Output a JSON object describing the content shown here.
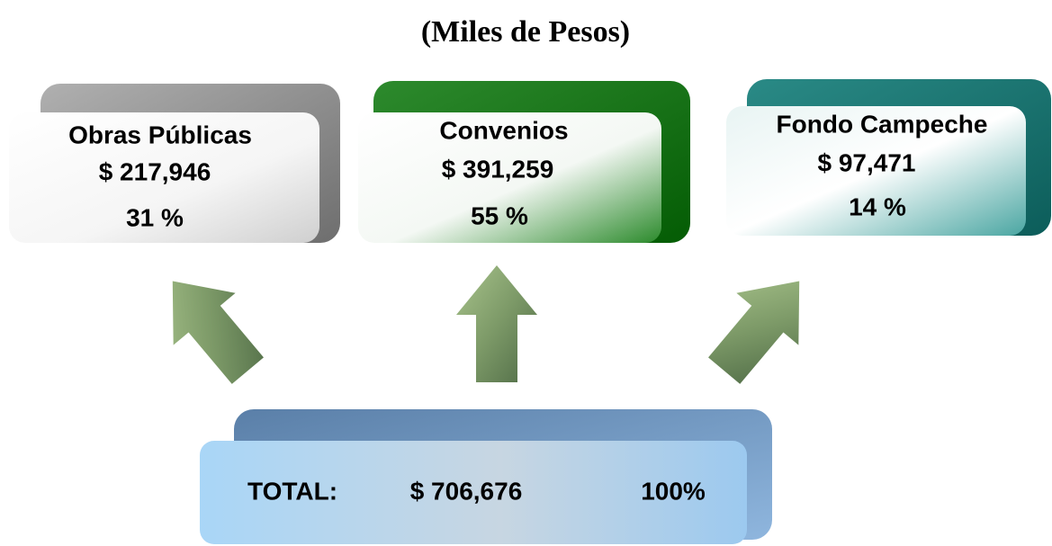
{
  "title": "(Miles de Pesos)",
  "boxes": [
    {
      "label": "Obras Públicas",
      "amount": "$ 217,946",
      "percent": "31 %"
    },
    {
      "label": "Convenios",
      "amount": "$ 391,259",
      "percent": "55 %"
    },
    {
      "label": "Fondo Campeche",
      "amount": "$ 97,471",
      "percent": "14 %"
    }
  ],
  "total": {
    "label": "TOTAL:",
    "amount": "$ 706,676",
    "percent": "100%"
  }
}
